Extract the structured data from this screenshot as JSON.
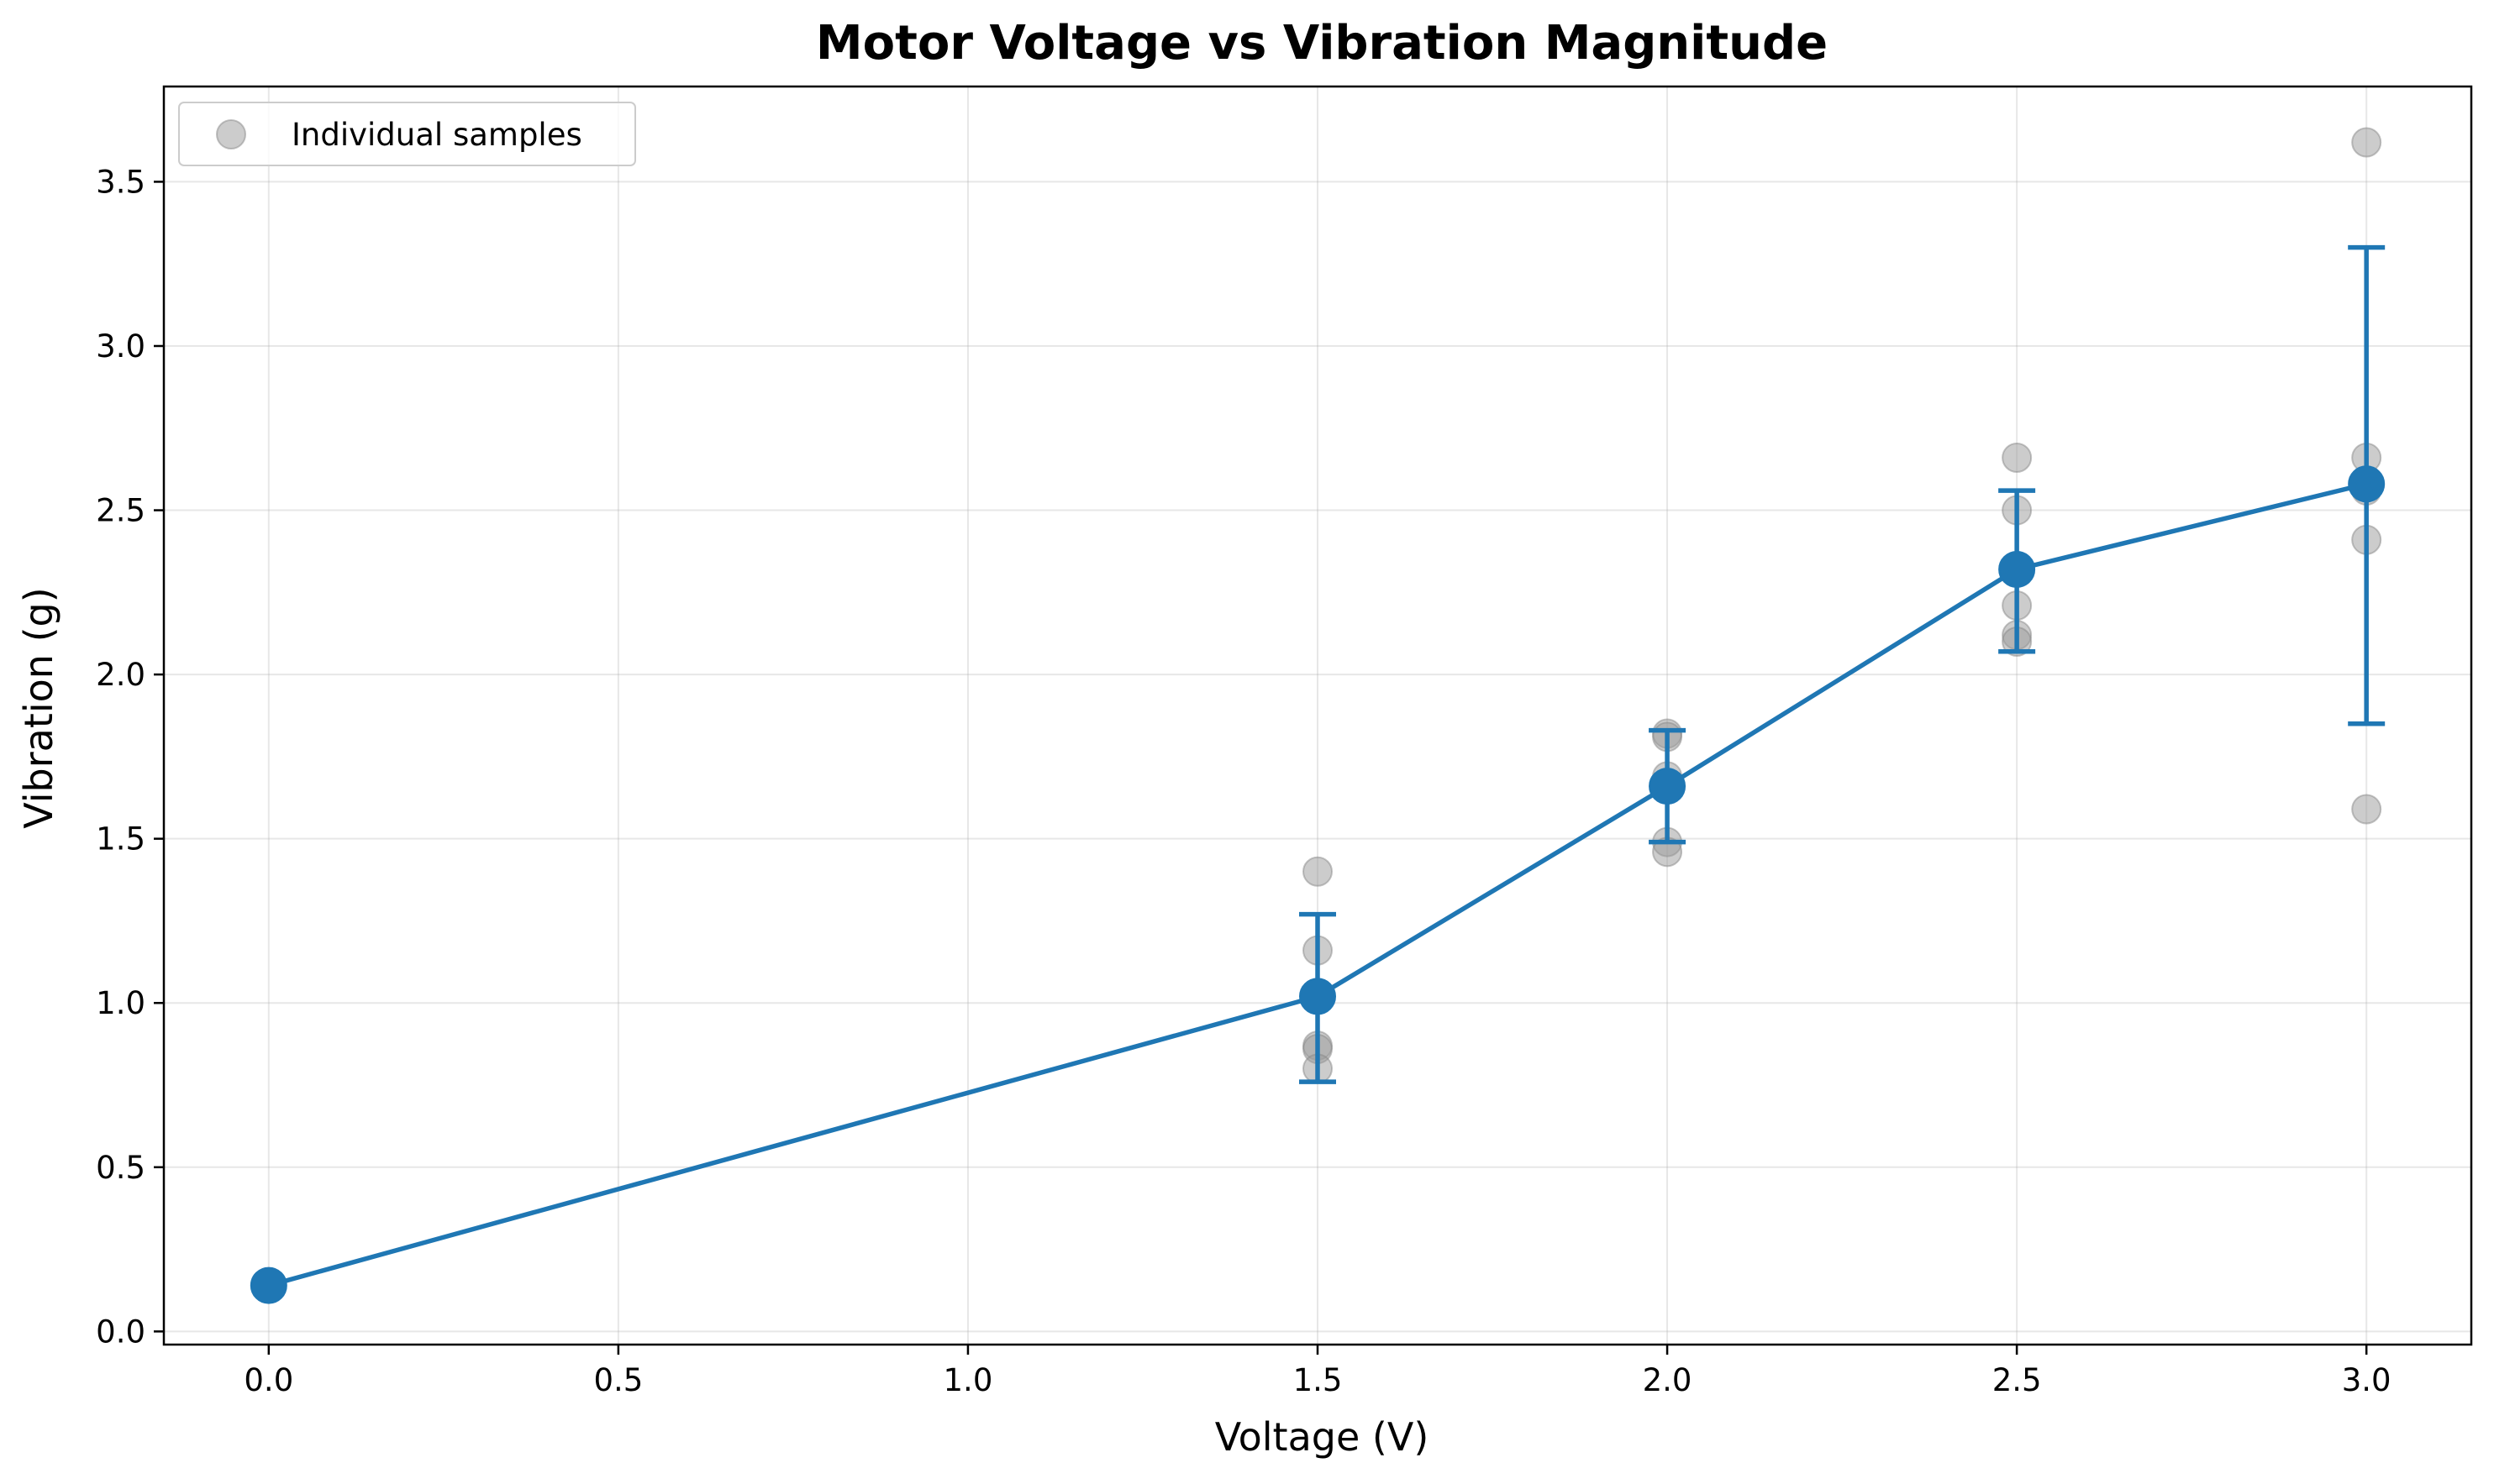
{
  "chart_data": {
    "type": "scatter",
    "title": "Motor Voltage vs Vibration Magnitude",
    "xlabel": "Voltage (V)",
    "ylabel": "Vibration (g)",
    "xlim": [
      -0.15,
      3.15
    ],
    "ylim": [
      -0.04,
      3.79
    ],
    "x_ticks": [
      0.0,
      0.5,
      1.0,
      1.5,
      2.0,
      2.5,
      3.0
    ],
    "x_tick_labels": [
      "0.0",
      "0.5",
      "1.0",
      "1.5",
      "2.0",
      "2.5",
      "3.0"
    ],
    "y_ticks": [
      0.0,
      0.5,
      1.0,
      1.5,
      2.0,
      2.5,
      3.0,
      3.5
    ],
    "y_tick_labels": [
      "0.0",
      "0.5",
      "1.0",
      "1.5",
      "2.0",
      "2.5",
      "3.0",
      "3.5"
    ],
    "grid": true,
    "legend_position": "upper-left",
    "legend": [
      "Individual samples"
    ],
    "series": [
      {
        "name": "Individual samples",
        "kind": "scatter",
        "color": "#999999",
        "points": [
          [
            1.5,
            1.4
          ],
          [
            1.5,
            1.16
          ],
          [
            1.5,
            0.87
          ],
          [
            1.5,
            0.86
          ],
          [
            1.5,
            0.8
          ],
          [
            2.0,
            1.82
          ],
          [
            2.0,
            1.81
          ],
          [
            2.0,
            1.69
          ],
          [
            2.0,
            1.49
          ],
          [
            2.0,
            1.46
          ],
          [
            2.5,
            2.66
          ],
          [
            2.5,
            2.5
          ],
          [
            2.5,
            2.21
          ],
          [
            2.5,
            2.12
          ],
          [
            2.5,
            2.1
          ],
          [
            3.0,
            3.62
          ],
          [
            3.0,
            2.66
          ],
          [
            3.0,
            2.56
          ],
          [
            3.0,
            2.41
          ],
          [
            3.0,
            1.59
          ]
        ]
      },
      {
        "kind": "line-errorbar",
        "color": "#1f77b4",
        "x": [
          0.0,
          1.5,
          2.0,
          2.5,
          3.0
        ],
        "y": [
          0.14,
          1.02,
          1.66,
          2.32,
          2.58
        ],
        "err_low": [
          null,
          0.76,
          1.49,
          2.07,
          1.85
        ],
        "err_high": [
          null,
          1.27,
          1.83,
          2.56,
          3.3
        ]
      }
    ]
  }
}
